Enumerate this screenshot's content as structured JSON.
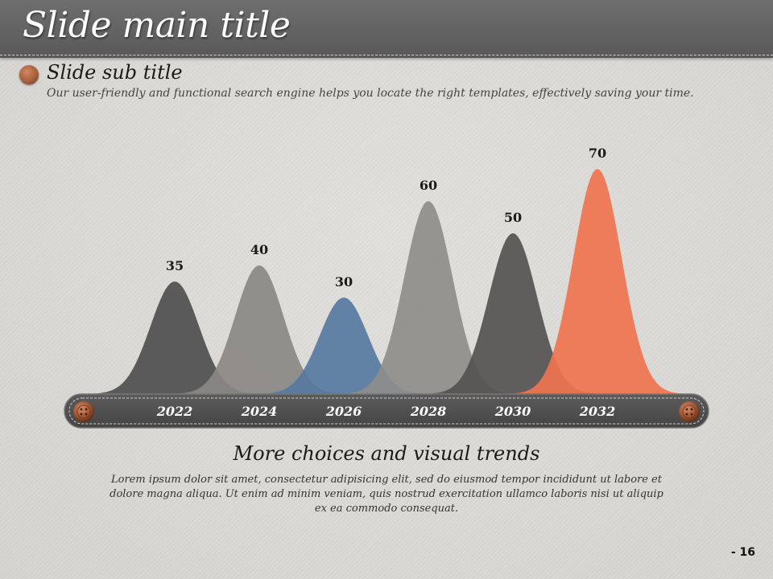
{
  "slide": {
    "title": "Slide main title",
    "subtitle": "Slide sub title",
    "description": "Our user-friendly and functional search engine helps you locate the right templates, effectively saving your time.",
    "chart_heading": "More choices and visual trends",
    "chart_body": "Lorem ipsum dolor sit amet, consectetur adipisicing elit, sed do eiusmod tempor incididunt ut labore et dolore magna aliqua. Ut enim ad minim veniam, quis nostrud exercitation ullamco laboris nisi ut aliquip ex ea commodo consequat.",
    "page_number": "- 16"
  },
  "chart_data": {
    "type": "area",
    "categories": [
      "2022",
      "2024",
      "2026",
      "2028",
      "2030",
      "2032"
    ],
    "values": [
      35,
      40,
      30,
      60,
      50,
      70
    ],
    "colors": [
      "#4f4f4f",
      "#8a8886",
      "#5679a0",
      "#8f8d8b",
      "#545352",
      "#ef7450"
    ],
    "ylim": [
      0,
      70
    ],
    "grid": false,
    "legend": "none"
  }
}
